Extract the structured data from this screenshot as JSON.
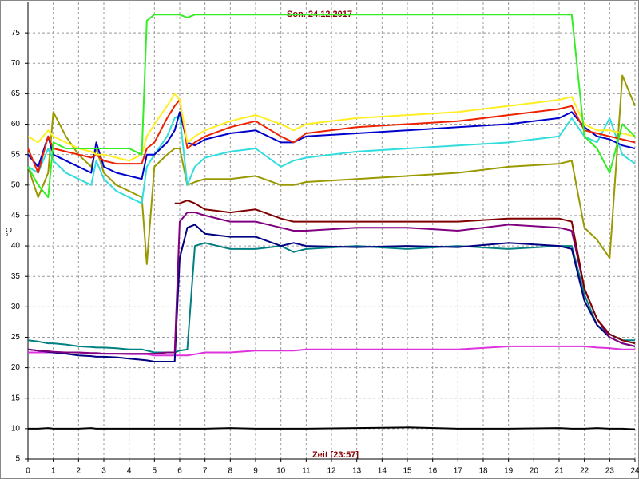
{
  "chart_data": {
    "type": "line",
    "title": "Son. 24.12.2017",
    "x_label": "Zeit [23:57]",
    "y_label": "°C",
    "x": [
      0,
      0.4,
      0.8,
      1,
      1.5,
      2,
      2.5,
      2.7,
      3,
      3.5,
      4,
      4.5,
      4.7,
      5,
      5.5,
      5.8,
      6,
      6.3,
      6.6,
      7,
      8,
      9,
      10,
      10.5,
      11,
      13,
      15,
      17,
      19,
      21,
      21.5,
      22,
      22.5,
      23,
      23.5,
      24
    ],
    "xlim": [
      0,
      24
    ],
    "xticks": [
      0,
      1,
      2,
      3,
      4,
      5,
      6,
      7,
      8,
      9,
      10,
      11,
      12,
      13,
      14,
      15,
      16,
      17,
      18,
      19,
      20,
      21,
      22,
      23,
      24
    ],
    "ylim": [
      5,
      80
    ],
    "yticks": [
      5,
      10,
      15,
      20,
      25,
      30,
      35,
      40,
      45,
      50,
      55,
      60,
      65,
      70,
      75
    ],
    "grid": true,
    "series": [
      {
        "color": "#000000",
        "values": [
          10,
          10,
          10.1,
          10,
          10,
          10,
          10.1,
          10,
          10,
          10,
          10,
          10,
          10,
          10,
          10,
          10,
          10,
          10,
          10,
          10,
          10.1,
          10,
          10,
          10,
          10,
          10.1,
          10.2,
          10,
          10,
          10.1,
          10,
          10,
          10.1,
          10,
          10,
          9.9
        ]
      },
      {
        "color": "#dd33dd",
        "values": [
          22.5,
          22.5,
          22.5,
          22.5,
          22.5,
          22.5,
          22.3,
          22.3,
          22.3,
          22.3,
          22.2,
          22.2,
          22.2,
          22,
          22,
          22,
          22,
          22,
          22.2,
          22.5,
          22.5,
          22.8,
          22.8,
          22.8,
          23,
          23,
          23,
          23,
          23.5,
          23.5,
          23.5,
          23.5,
          23.3,
          23.2,
          23,
          23
        ]
      },
      {
        "color": "#008080",
        "values": [
          24.5,
          24.3,
          24,
          24,
          23.8,
          23.5,
          23.4,
          23.3,
          23.3,
          23.2,
          23,
          23,
          22.8,
          22.5,
          22.5,
          22.5,
          22.8,
          23,
          40,
          40.5,
          39.5,
          39.5,
          40,
          39,
          39.5,
          40,
          39.5,
          40,
          39.5,
          40,
          40,
          32,
          27,
          25.5,
          24.5,
          24.5
        ]
      },
      {
        "color": "#000080",
        "values": [
          23,
          22.8,
          22.6,
          22.5,
          22.3,
          22,
          21.9,
          21.8,
          21.8,
          21.7,
          21.5,
          21.3,
          21.2,
          21,
          21,
          21,
          38,
          43,
          43.5,
          42,
          41.5,
          41.5,
          40,
          40.5,
          40,
          39.8,
          40,
          39.8,
          40.5,
          40,
          39.5,
          31,
          27,
          25,
          24,
          23.5
        ]
      },
      {
        "color": "#800080",
        "values": [
          23,
          22.8,
          22.7,
          22.6,
          22.5,
          22.5,
          22.4,
          22.4,
          22.3,
          22.3,
          22.3,
          22.3,
          22.3,
          22.3,
          22.5,
          22.5,
          44,
          45.5,
          45.5,
          45,
          44,
          44,
          43,
          42.5,
          42.5,
          43,
          43,
          42.5,
          43.5,
          43,
          42.5,
          33,
          28,
          25,
          24,
          23.5
        ]
      },
      {
        "color": "#800000",
        "values": [
          null,
          null,
          null,
          null,
          null,
          null,
          null,
          null,
          null,
          null,
          null,
          null,
          null,
          null,
          null,
          47,
          47,
          47.5,
          47,
          46,
          45.5,
          46,
          44.5,
          44,
          44,
          44,
          44,
          44,
          44.5,
          44.5,
          44,
          33,
          28,
          25.5,
          24.5,
          24
        ]
      },
      {
        "color": "#999900",
        "values": [
          53,
          48,
          52,
          62,
          58,
          55,
          53,
          56,
          52,
          50,
          49,
          48,
          37,
          53,
          55,
          56,
          56,
          50,
          50.5,
          51,
          51,
          51.5,
          50,
          50,
          50.5,
          51,
          51.5,
          52,
          53,
          53.5,
          54,
          43,
          41,
          38,
          68,
          63
        ]
      },
      {
        "color": "#33dddd",
        "values": [
          53,
          52,
          56,
          54,
          52,
          51,
          50,
          54,
          51,
          49,
          48,
          47,
          53,
          55,
          58,
          61,
          61.5,
          50,
          53,
          54.5,
          55.5,
          56,
          53,
          54,
          54.5,
          55.5,
          56,
          56.5,
          57,
          58,
          61,
          58,
          57,
          61,
          55,
          53.5
        ]
      },
      {
        "color": "#0000cc",
        "values": [
          55,
          53,
          58,
          55,
          54,
          53,
          52,
          57,
          53,
          52,
          51.5,
          51,
          55,
          55,
          57,
          59,
          62,
          57,
          56.5,
          57.5,
          58.5,
          59,
          57,
          57,
          58,
          58.5,
          59,
          59.5,
          60,
          61,
          62,
          59.5,
          58,
          57.5,
          56.5,
          56
        ]
      },
      {
        "color": "#ee2200",
        "values": [
          56,
          52,
          58,
          56,
          55.5,
          55,
          54.5,
          55,
          54,
          53.5,
          53.5,
          53.5,
          56,
          57,
          61,
          63,
          64,
          56,
          57,
          58,
          59.5,
          60.5,
          58,
          57,
          58.5,
          59.5,
          60,
          60.5,
          61.5,
          62.5,
          63,
          59,
          58.5,
          58,
          57.5,
          57
        ]
      },
      {
        "color": "#ffee22",
        "values": [
          58,
          57,
          59,
          58,
          57,
          56,
          55.5,
          55,
          55,
          54.5,
          54,
          55,
          58,
          60,
          63,
          65,
          64,
          57,
          58,
          59,
          60.5,
          61.5,
          60,
          59,
          60,
          61,
          61.5,
          62,
          63,
          64,
          64.5,
          60,
          59,
          59,
          58.5,
          58
        ]
      },
      {
        "color": "#33ee22",
        "values": [
          53,
          50,
          48,
          57,
          56,
          56,
          56,
          56,
          56,
          56,
          56,
          55,
          77,
          78,
          78,
          78,
          78,
          77.5,
          78,
          78,
          78,
          78,
          78,
          78,
          78,
          78,
          78,
          78,
          78,
          78,
          78,
          58,
          56,
          52,
          60,
          58
        ]
      }
    ]
  }
}
